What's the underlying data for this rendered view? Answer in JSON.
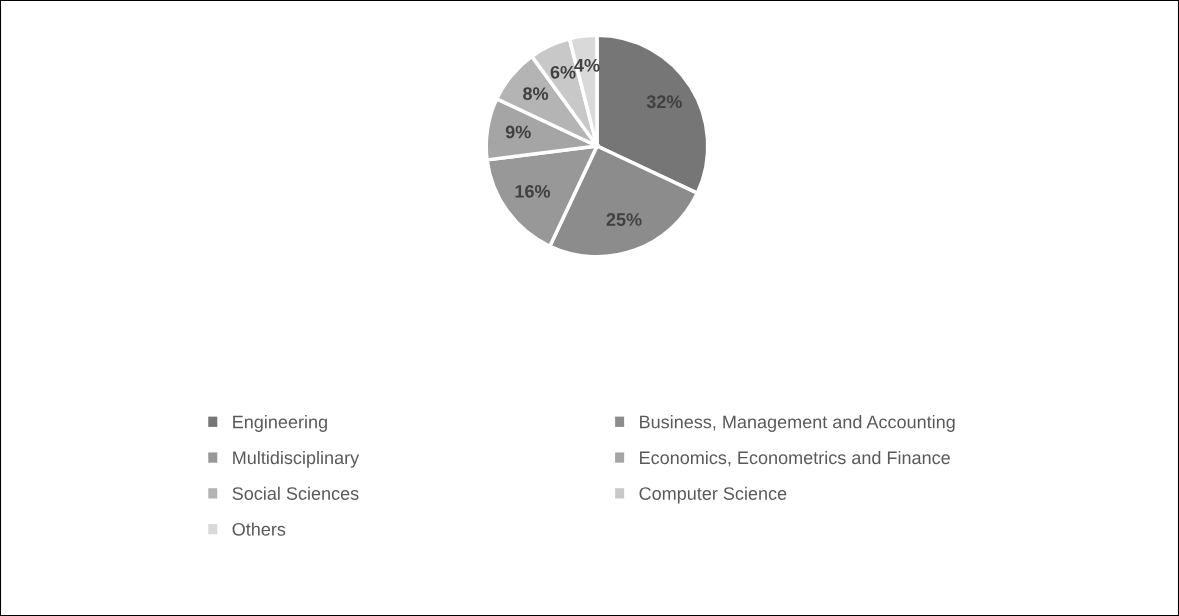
{
  "chart_data": {
    "type": "pie",
    "categories": [
      "Engineering",
      "Business, Management and Accounting",
      "Multidisciplinary",
      "Economics, Econometrics and Finance",
      "Social Sciences",
      "Computer Science",
      "Others"
    ],
    "values": [
      32,
      25,
      16,
      9,
      8,
      6,
      4
    ],
    "value_labels": [
      "32%",
      "25%",
      "16%",
      "9%",
      "8%",
      "6%",
      "4%"
    ],
    "colors": [
      "#767676",
      "#8c8c8c",
      "#989898",
      "#a5a5a5",
      "#b4b4b4",
      "#c8c8c8",
      "#d9d9d9"
    ],
    "legend": "bottom"
  }
}
